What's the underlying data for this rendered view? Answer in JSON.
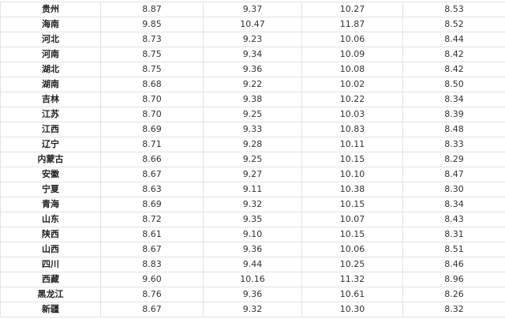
{
  "table": {
    "rows": [
      [
        "贵州",
        "8.87",
        "9.37",
        "10.27",
        "8.53"
      ],
      [
        "海南",
        "9.85",
        "10.47",
        "11.87",
        "8.52"
      ],
      [
        "河北",
        "8.73",
        "9.23",
        "10.06",
        "8.44"
      ],
      [
        "河南",
        "8.75",
        "9.34",
        "10.09",
        "8.42"
      ],
      [
        "湖北",
        "8.75",
        "9.36",
        "10.08",
        "8.42"
      ],
      [
        "湖南",
        "8.68",
        "9.22",
        "10.02",
        "8.50"
      ],
      [
        "吉林",
        "8.70",
        "9.38",
        "10.22",
        "8.34"
      ],
      [
        "江苏",
        "8.70",
        "9.25",
        "10.03",
        "8.39"
      ],
      [
        "江西",
        "8.69",
        "9.33",
        "10.83",
        "8.48"
      ],
      [
        "辽宁",
        "8.71",
        "9.28",
        "10.11",
        "8.33"
      ],
      [
        "内蒙古",
        "8.66",
        "9.25",
        "10.15",
        "8.29"
      ],
      [
        "安徽",
        "8.67",
        "9.27",
        "10.10",
        "8.47"
      ],
      [
        "宁夏",
        "8.63",
        "9.11",
        "10.38",
        "8.30"
      ],
      [
        "青海",
        "8.69",
        "9.32",
        "10.15",
        "8.34"
      ],
      [
        "山东",
        "8.72",
        "9.35",
        "10.07",
        "8.43"
      ],
      [
        "陕西",
        "8.61",
        "9.10",
        "10.15",
        "8.31"
      ],
      [
        "山西",
        "8.67",
        "9.36",
        "10.06",
        "8.51"
      ],
      [
        "四川",
        "8.83",
        "9.44",
        "10.25",
        "8.46"
      ],
      [
        "西藏",
        "9.60",
        "10.16",
        "11.32",
        "8.96"
      ],
      [
        "黑龙江",
        "8.76",
        "9.36",
        "10.61",
        "8.26"
      ],
      [
        "新疆",
        "8.67",
        "9.32",
        "10.30",
        "8.32"
      ]
    ]
  }
}
